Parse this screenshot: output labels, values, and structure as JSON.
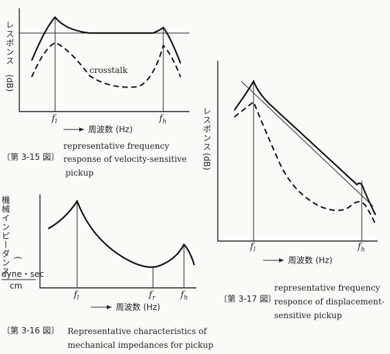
{
  "figures": [
    {
      "y_label": "レスポンス",
      "y_unit": "(dB)",
      "annotation": "crosstalk",
      "ticks": [
        {
          "base": "f",
          "sub": "l"
        },
        {
          "base": "f",
          "sub": "h"
        }
      ],
      "x_label": "周波数 (Hz)",
      "number": "〔第 3-15 図〕",
      "caption": [
        "representative frequency",
        "response of velocity-sensitive",
        "pickup"
      ]
    },
    {
      "y_label": "機械インピーダンス",
      "y_unit": "dyne・sec",
      "y_unit_denominator": "cm",
      "ticks": [
        {
          "base": "f",
          "sub": "l"
        },
        {
          "base": "f",
          "sub": "r"
        },
        {
          "base": "f",
          "sub": "h"
        }
      ],
      "x_label": "周波数 (Hz)",
      "number": "〔第 3-16 図〕",
      "caption": [
        "Representative characteristics of",
        "mechanical impedances for pickup"
      ]
    },
    {
      "y_label": "レスポンス",
      "y_unit": "(dB)",
      "ticks": [
        {
          "base": "f",
          "sub": "l"
        },
        {
          "base": "f",
          "sub": "h"
        }
      ],
      "x_label": "周波数 (Hz)",
      "number": "〔第 3-17 図〕",
      "caption": [
        "representative frequency",
        "responce of displacement-",
        "sensitive pickup"
      ]
    }
  ]
}
